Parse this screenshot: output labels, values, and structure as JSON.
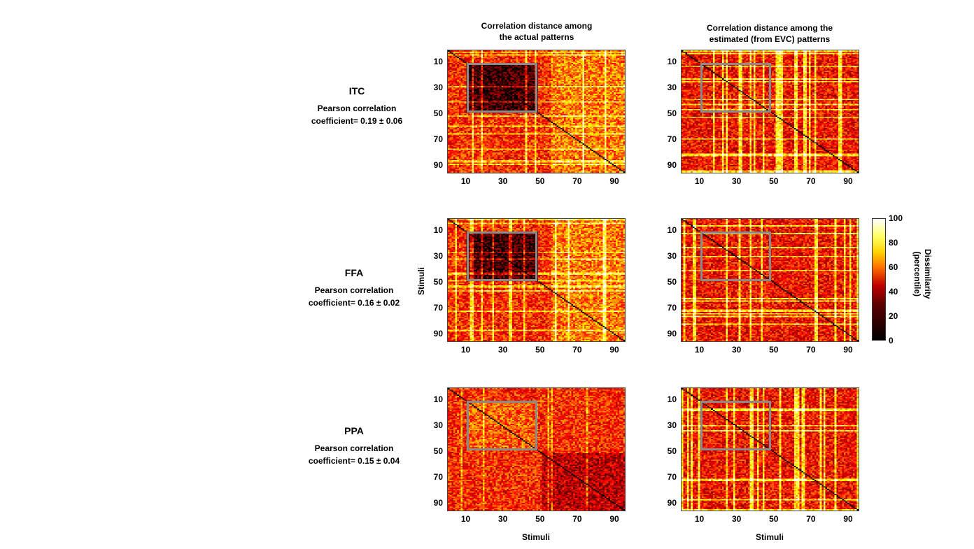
{
  "columns": [
    {
      "title_lines": [
        "Correlation distance among",
        "the actual  patterns"
      ]
    },
    {
      "title_lines": [
        "Correlation distance among the",
        "estimated (from EVC) patterns"
      ]
    }
  ],
  "rows": [
    {
      "roi": "ITC",
      "coef_line1": "Pearson correlation",
      "coef_line2": "coefficient= 0.19 ± 0.06"
    },
    {
      "roi": "FFA",
      "coef_line1": "Pearson correlation",
      "coef_line2": "coefficient= 0.16 ± 0.02"
    },
    {
      "roi": "PPA",
      "coef_line1": "Pearson correlation",
      "coef_line2": "coefficient= 0.15 ± 0.04"
    }
  ],
  "axes": {
    "ylabel": "Stimuli",
    "xlabel": "Stimuli",
    "ticks": [
      "10",
      "30",
      "50",
      "70",
      "90"
    ]
  },
  "colorbar": {
    "label_lines": [
      "Dissimilarity",
      "(percentile)"
    ],
    "ticks": [
      "100",
      "80",
      "60",
      "40",
      "20",
      "0"
    ]
  },
  "chart_data": {
    "type": "heatmap",
    "description_note": "",
    "n_stimuli": 96,
    "tick_values": [
      10,
      30,
      50,
      70,
      90
    ],
    "colorbar_range": [
      0,
      100
    ],
    "highlight_block": {
      "from_stimulus": 10,
      "to_stimulus": 48
    },
    "panels": [
      {
        "row": "ITC",
        "column": "actual"
      },
      {
        "row": "ITC",
        "column": "estimated"
      },
      {
        "row": "FFA",
        "column": "actual"
      },
      {
        "row": "FFA",
        "column": "estimated"
      },
      {
        "row": "PPA",
        "column": "actual"
      },
      {
        "row": "PPA",
        "column": "estimated"
      }
    ]
  }
}
